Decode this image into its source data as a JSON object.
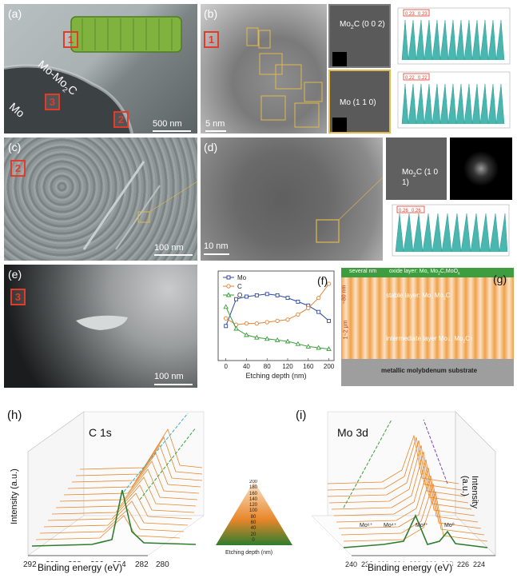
{
  "panels": {
    "a": {
      "label": "(a)",
      "texts": [
        "Mo-Mo",
        "2",
        "C",
        "Mo"
      ],
      "boxes": [
        "1",
        "2",
        "3"
      ],
      "scale": "500 nm"
    },
    "b": {
      "label": "(b)",
      "box": "1",
      "scale": "5 nm",
      "lattice1": "Mo",
      "lattice1_sub": "2",
      "lattice1_rest": "C (0 0 2)",
      "lattice2": "Mo (1 1 0)",
      "spacing1": "0.23",
      "spacing2": "0.23",
      "spacing3": "0.22",
      "spacing4": "0.22"
    },
    "c": {
      "label": "(c)",
      "box": "2",
      "scale": "100 nm"
    },
    "d": {
      "label": "(d)",
      "scale": "10 nm",
      "lattice": "Mo",
      "lattice_sub": "2",
      "lattice_rest": "C (1 0 1)",
      "spacing1": "0.26",
      "spacing2": "0.26"
    },
    "e": {
      "label": "(e)",
      "box": "3",
      "scale": "100 nm"
    },
    "f": {
      "label": "(f)"
    },
    "g": {
      "label": "(g)",
      "top": "several nm",
      "top_layer": "oxide layer: Mo, Mo",
      "top_layer_sub": "2",
      "top_layer_rest": "C,MoO",
      "top_layer_sub2": "x",
      "depth1": "~80 nm",
      "stable": "stable layer: Mo, Mo",
      "stable_sub": "2",
      "stable_rest": "C",
      "depth2": "1~2 μm",
      "intermediate": "intermediate layer Mo↓, Mo",
      "intermediate_sub": "2",
      "intermediate_rest": "C↑",
      "substrate": "metallic molybdenum substrate"
    },
    "h": {
      "label": "(h)",
      "title": "C 1s",
      "xlabel": "Binding energy (eV)",
      "ylabel": "Intensity (a.u.)",
      "xticks": [
        "292",
        "290",
        "288",
        "286",
        "284",
        "282",
        "280"
      ]
    },
    "i": {
      "label": "(i)",
      "title": "Mo 3d",
      "xlabel": "Binding energy (eV)",
      "ylabel": "Intensity (a.u.)",
      "xticks": [
        "240",
        "238",
        "236",
        "234",
        "232",
        "230",
        "228",
        "226",
        "224"
      ],
      "peaks": [
        "Mo⁶⁺",
        "Mo⁴⁺",
        "Mo²⁺",
        "Mo⁰"
      ]
    },
    "legend_depth": {
      "ticks": [
        "200",
        "180",
        "160",
        "140",
        "120",
        "100",
        "80",
        "60",
        "40",
        "20",
        "0"
      ],
      "label": "Etching depth (nm)"
    }
  },
  "chart_data": [
    {
      "type": "line",
      "xlabel": "Etching depth (nm)",
      "ylabel": "",
      "xlim": [
        -15,
        210
      ],
      "ylim": [
        0,
        70
      ],
      "xticks": [
        0,
        40,
        80,
        120,
        160,
        200
      ],
      "series": [
        {
          "name": "Mo",
          "color": "#2e4a9e",
          "marker": "square",
          "x": [
            0,
            20,
            40,
            60,
            80,
            100,
            120,
            140,
            160,
            180,
            200
          ],
          "y": [
            27,
            48,
            50,
            51,
            52,
            51,
            49,
            46,
            43,
            38,
            31
          ]
        },
        {
          "name": "C",
          "color": "#e0843a",
          "marker": "circle",
          "x": [
            0,
            20,
            40,
            60,
            80,
            100,
            120,
            140,
            160,
            180,
            200
          ],
          "y": [
            33,
            28,
            29,
            29,
            30,
            31,
            32,
            36,
            41,
            49,
            60
          ]
        },
        {
          "name": "O",
          "color": "#3a9d3a",
          "marker": "triangle",
          "x": [
            0,
            20,
            40,
            60,
            80,
            100,
            120,
            140,
            160,
            180,
            200
          ],
          "y": [
            42,
            25,
            20,
            18,
            17,
            16,
            15,
            13,
            11,
            10,
            9
          ]
        }
      ]
    }
  ]
}
